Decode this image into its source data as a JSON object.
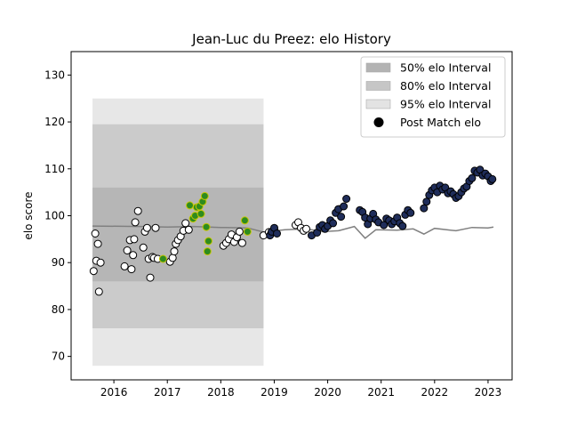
{
  "chart_data": {
    "type": "scatter",
    "title": "Jean-Luc du Preez: elo History",
    "xlabel": "",
    "ylabel": "elo score",
    "xlim": [
      2015.2,
      2023.45
    ],
    "ylim": [
      65,
      135
    ],
    "x_ticks": [
      2016,
      2017,
      2018,
      2019,
      2020,
      2021,
      2022,
      2023
    ],
    "y_ticks": [
      70,
      80,
      90,
      100,
      110,
      120,
      130
    ],
    "grid": false,
    "legend_position": "top-right",
    "legend": [
      {
        "label": "50% elo Interval",
        "kind": "patch",
        "color": "#b3b3b3"
      },
      {
        "label": "80% elo Interval",
        "kind": "patch",
        "color": "#c6c6c6"
      },
      {
        "label": "95% elo Interval",
        "kind": "patch",
        "color": "#e3e3e3"
      },
      {
        "label": "Post Match elo",
        "kind": "marker",
        "color": "#000000"
      }
    ],
    "colors": {
      "band_50": "#b3b3b3",
      "band_80": "#c6c6c6",
      "band_95": "#e3e3e3",
      "mean_line": "#808080",
      "marker_white": "#ffffff",
      "marker_green": "#2e8b1f",
      "marker_navy": "#1f2d5a",
      "marker_edge_yellow": "#c8c800"
    },
    "block_interval": {
      "x_start": 2015.6,
      "x_end": 2018.8,
      "p50": [
        86,
        106
      ],
      "p80": [
        76,
        119.5
      ],
      "p95": [
        68,
        125
      ]
    },
    "mean_line": {
      "x": [
        2015.6,
        2016.5,
        2017.0,
        2017.5,
        2018.0,
        2018.5,
        2018.8,
        2019.2,
        2019.6,
        2019.9,
        2020.2,
        2020.5,
        2020.7,
        2020.9,
        2021.3,
        2021.6,
        2021.8,
        2022.0,
        2022.4,
        2022.7,
        2023.0,
        2023.1
      ],
      "y": [
        97.8,
        97.7,
        97.6,
        97.7,
        97.5,
        97.4,
        96.5,
        97.0,
        97.2,
        96.6,
        96.8,
        97.7,
        95.2,
        97.0,
        96.9,
        97.2,
        96.1,
        97.3,
        96.8,
        97.5,
        97.4,
        97.6
      ]
    },
    "series": [
      {
        "name": "Post Match elo",
        "x": [
          2015.62,
          2015.65,
          2015.67,
          2015.7,
          2015.72,
          2015.75,
          2016.2,
          2016.25,
          2016.3,
          2016.33,
          2016.36,
          2016.38,
          2016.4,
          2016.45,
          2016.55,
          2016.58,
          2016.62,
          2016.65,
          2016.68,
          2016.72,
          2016.75,
          2016.78,
          2016.82,
          2017.05,
          2017.1,
          2017.13,
          2017.16,
          2017.2,
          2017.25,
          2017.3,
          2017.34,
          2017.4,
          2018.05,
          2018.1,
          2018.15,
          2018.2,
          2018.25,
          2018.3,
          2018.35,
          2018.4,
          2018.8,
          2018.9,
          2019.0,
          2019.4,
          2019.45,
          2019.5,
          2019.55,
          2019.6
        ],
        "y": [
          88.2,
          96.2,
          90.4,
          94.0,
          83.8,
          90.0,
          89.2,
          92.6,
          94.8,
          88.6,
          91.6,
          95.0,
          98.6,
          101.0,
          93.2,
          96.6,
          97.4,
          90.8,
          86.8,
          91.2,
          91.0,
          97.4,
          90.8,
          90.2,
          91.0,
          92.4,
          94.0,
          94.8,
          95.6,
          96.8,
          98.4,
          97.0,
          93.6,
          94.2,
          95.0,
          96.0,
          94.4,
          95.4,
          96.6,
          94.2,
          95.8,
          96.5,
          97.0,
          98.0,
          98.6,
          97.4,
          96.8,
          97.2
        ],
        "color": "#ffffff"
      },
      {
        "name": "Post Match elo",
        "x": [
          2016.92,
          2017.42,
          2017.48,
          2017.52,
          2017.55,
          2017.6,
          2017.63,
          2017.66,
          2017.7,
          2017.73,
          2017.75,
          2017.77,
          2018.45,
          2018.5
        ],
        "y": [
          90.8,
          102.2,
          99.4,
          100.0,
          101.8,
          102.0,
          100.4,
          103.0,
          104.2,
          97.6,
          92.4,
          94.6,
          99.0,
          96.6
        ],
        "color": "#2e8b1f"
      },
      {
        "name": "Post Match elo",
        "x": [
          2018.92,
          2018.95,
          2019.0,
          2019.05,
          2019.7,
          2019.8,
          2019.85,
          2019.9,
          2019.95,
          2020.0,
          2020.05,
          2020.1,
          2020.15,
          2020.2,
          2020.25,
          2020.3,
          2020.35,
          2020.6,
          2020.65,
          2020.7,
          2020.75,
          2020.8,
          2020.85,
          2020.9,
          2020.95,
          2021.05,
          2021.1,
          2021.15,
          2021.2,
          2021.25,
          2021.3,
          2021.35,
          2021.4,
          2021.45,
          2021.5,
          2021.55,
          2021.8,
          2021.85,
          2021.9,
          2021.95,
          2022.0,
          2022.05,
          2022.1,
          2022.15,
          2022.2,
          2022.25,
          2022.3,
          2022.35,
          2022.4,
          2022.45,
          2022.5,
          2022.55,
          2022.6,
          2022.65,
          2022.7,
          2022.75,
          2022.8,
          2022.85,
          2022.9,
          2022.95,
          2023.0,
          2023.05,
          2023.08
        ],
        "y": [
          95.8,
          96.6,
          97.4,
          96.2,
          95.8,
          96.4,
          97.6,
          98.0,
          97.2,
          97.8,
          99.0,
          98.4,
          100.6,
          101.4,
          99.8,
          102.0,
          103.6,
          101.2,
          100.8,
          99.6,
          98.2,
          99.4,
          100.4,
          99.2,
          98.6,
          98.0,
          99.4,
          99.0,
          98.2,
          98.8,
          99.6,
          98.4,
          97.8,
          100.2,
          101.2,
          100.6,
          101.6,
          103.0,
          104.4,
          105.4,
          106.0,
          105.0,
          106.4,
          105.6,
          106.0,
          104.8,
          105.2,
          104.6,
          103.8,
          104.2,
          105.0,
          105.8,
          106.2,
          107.4,
          108.0,
          109.6,
          109.2,
          109.8,
          108.6,
          109.0,
          108.4,
          107.4,
          107.8
        ],
        "color": "#1f2d5a"
      }
    ]
  }
}
